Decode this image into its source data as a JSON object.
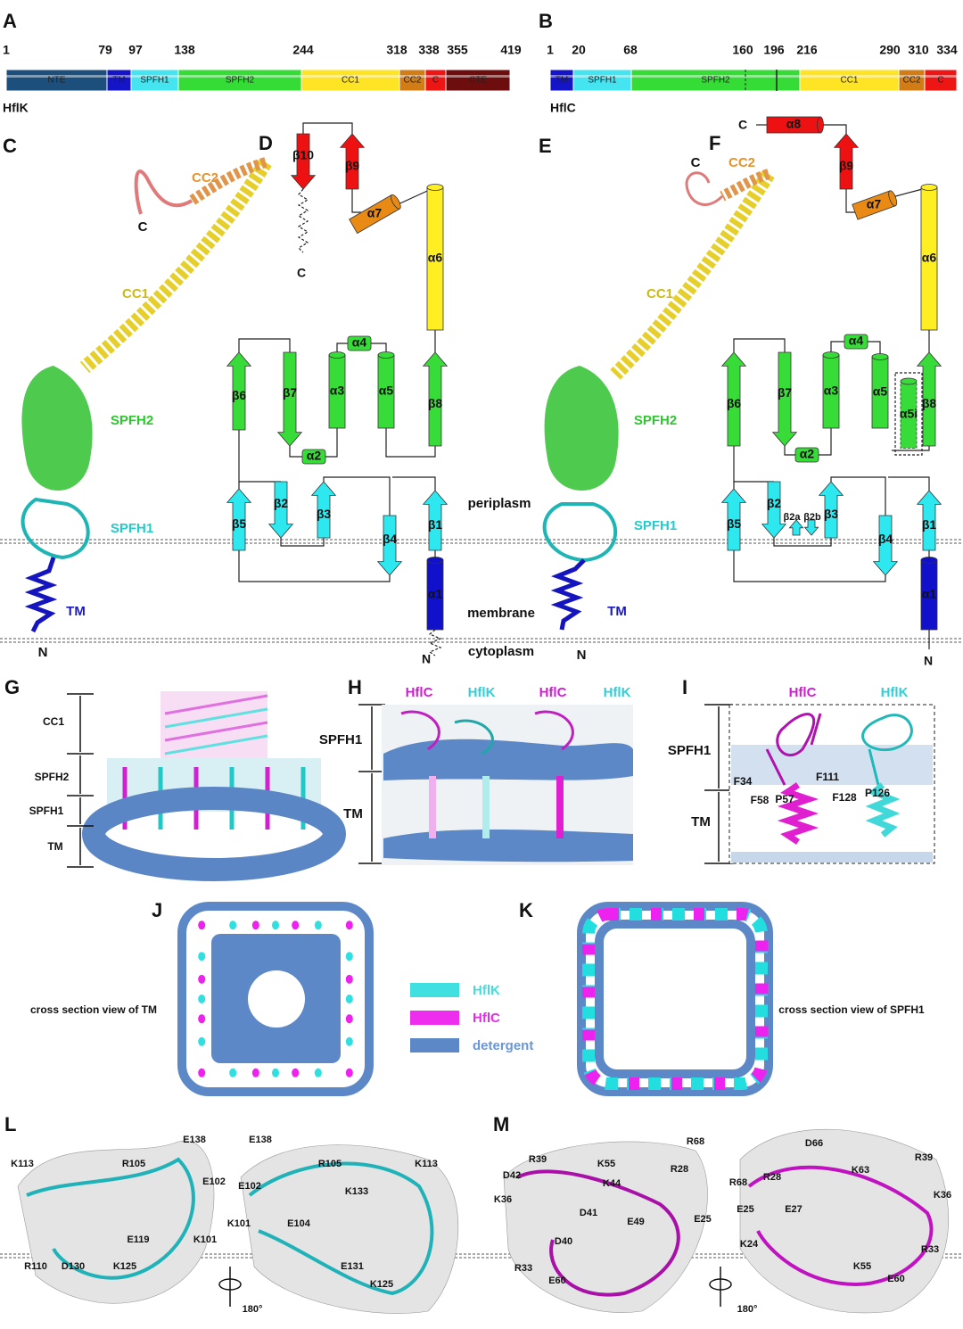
{
  "panel_letters": [
    "A",
    "B",
    "C",
    "D",
    "E",
    "F",
    "G",
    "H",
    "I",
    "J",
    "K",
    "L",
    "M"
  ],
  "domain_maps": [
    {
      "protein": "HflK",
      "positions": [
        1,
        79,
        97,
        138,
        244,
        318,
        338,
        355,
        419
      ],
      "domains": [
        "NTE",
        "TM",
        "SPFH1",
        "SPFH2",
        "CC1",
        "CC2",
        "C",
        "CTE"
      ]
    },
    {
      "protein": "HflC",
      "positions": [
        1,
        20,
        68,
        160,
        196,
        216,
        290,
        310,
        334
      ],
      "domains": [
        "TM",
        "SPFH1",
        "SPFH2",
        "CC1",
        "CC2",
        "C"
      ]
    }
  ],
  "structures": [
    {
      "labels": [
        "CC2",
        "C",
        "CC1",
        "SPFH2",
        "SPFH1",
        "TM",
        "N"
      ]
    },
    {
      "labels": [
        "C",
        "CC2",
        "CC1",
        "SPFH2",
        "SPFH1",
        "TM",
        "N"
      ]
    }
  ],
  "topologies": [
    {
      "elements": [
        "β10",
        "β9",
        "α7",
        "α6",
        "α4",
        "β6",
        "β7",
        "α3",
        "α5",
        "β8",
        "α2",
        "β5",
        "β2",
        "β3",
        "β4",
        "β1",
        "α1"
      ],
      "termini": [
        "C",
        "N"
      ]
    },
    {
      "elements": [
        "α8",
        "β9",
        "α7",
        "α6",
        "α4",
        "β6",
        "β7",
        "α3",
        "α5",
        "α5i",
        "β8",
        "α2",
        "β5",
        "β2",
        "β2a",
        "β2b",
        "β3",
        "β4",
        "β1",
        "α1"
      ],
      "termini": [
        "C",
        "N"
      ]
    }
  ],
  "compartments": [
    "periplasm",
    "membrane",
    "cytoplasm"
  ],
  "panel_g": {
    "labels": [
      "CC1",
      "SPFH2",
      "SPFH1",
      "TM"
    ]
  },
  "panel_h": {
    "proteins": [
      "HflC",
      "HflK",
      "HflC",
      "HflK"
    ],
    "labels": [
      "SPFH1",
      "TM"
    ]
  },
  "panel_i": {
    "proteins": [
      "HflC",
      "HflK"
    ],
    "labels": [
      "SPFH1",
      "TM"
    ],
    "residues": [
      "F34",
      "F58",
      "P57",
      "F111",
      "F128",
      "P126"
    ]
  },
  "cross_sections": [
    "cross section view of TM",
    "cross section view of SPFH1"
  ],
  "legend": [
    "HflK",
    "HflC",
    "detergent"
  ],
  "panel_l": {
    "left": [
      "E138",
      "R105",
      "E102",
      "K113",
      "E119",
      "K101",
      "R110",
      "D130",
      "K125"
    ],
    "right": [
      "E138",
      "R105",
      "E102",
      "K133",
      "K113",
      "K101",
      "E104",
      "E131",
      "K125"
    ],
    "rotation": "180°"
  },
  "panel_m": {
    "left": [
      "R39",
      "K55",
      "R68",
      "D42",
      "K44",
      "R28",
      "K36",
      "D41",
      "E25",
      "E49",
      "D40",
      "R33",
      "E60"
    ],
    "right": [
      "D66",
      "R28",
      "K63",
      "R39",
      "R68",
      "K36",
      "E25",
      "E27",
      "K24",
      "R33",
      "K55",
      "E60"
    ],
    "rotation": "180°"
  }
}
